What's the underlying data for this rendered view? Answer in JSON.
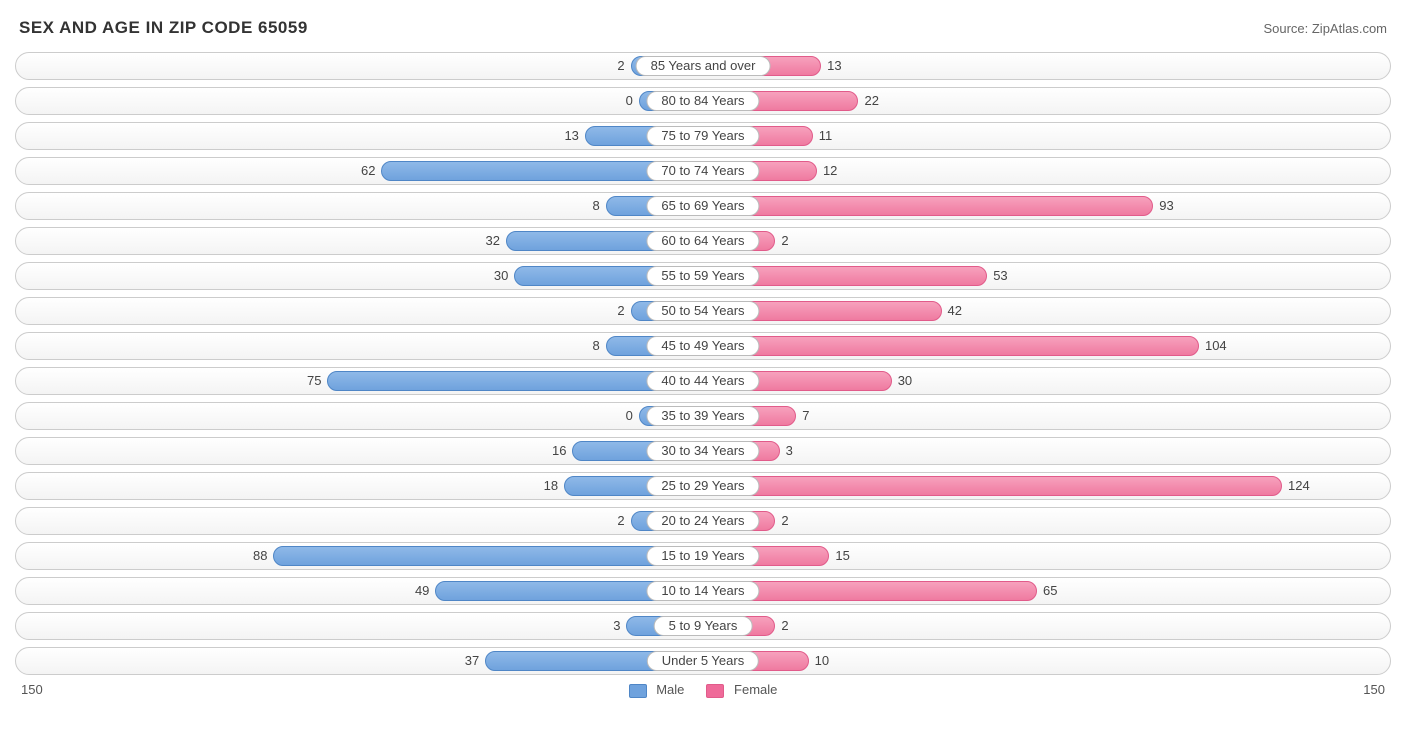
{
  "title": "SEX AND AGE IN ZIP CODE 65059",
  "source": "Source: ZipAtlas.com",
  "axis": {
    "max": 150,
    "left_label": "150",
    "right_label": "150"
  },
  "pill_width_units": 17,
  "bar_min_units": 14,
  "colors": {
    "male_fill": "linear-gradient(to bottom, #8fb9e8 0%, #6fa2dd 100%)",
    "male_border": "#4f86c6",
    "female_fill": "linear-gradient(to bottom, #f7a1bd 0%, #ef7aa0 100%)",
    "female_border": "#e15b8a",
    "male_swatch": "#6fa2dd",
    "female_swatch": "#ef6a99",
    "title_color": "#333333",
    "source_color": "#666666",
    "text_color": "#444444",
    "row_border": "#cccccc",
    "pill_border": "#bbbbbb",
    "background": "#ffffff"
  },
  "legend": {
    "male": "Male",
    "female": "Female"
  },
  "rows": [
    {
      "label": "85 Years and over",
      "male": 2,
      "female": 13
    },
    {
      "label": "80 to 84 Years",
      "male": 0,
      "female": 22
    },
    {
      "label": "75 to 79 Years",
      "male": 13,
      "female": 11
    },
    {
      "label": "70 to 74 Years",
      "male": 62,
      "female": 12
    },
    {
      "label": "65 to 69 Years",
      "male": 8,
      "female": 93
    },
    {
      "label": "60 to 64 Years",
      "male": 32,
      "female": 2
    },
    {
      "label": "55 to 59 Years",
      "male": 30,
      "female": 53
    },
    {
      "label": "50 to 54 Years",
      "male": 2,
      "female": 42
    },
    {
      "label": "45 to 49 Years",
      "male": 8,
      "female": 104
    },
    {
      "label": "40 to 44 Years",
      "male": 75,
      "female": 30
    },
    {
      "label": "35 to 39 Years",
      "male": 0,
      "female": 7
    },
    {
      "label": "30 to 34 Years",
      "male": 16,
      "female": 3
    },
    {
      "label": "25 to 29 Years",
      "male": 18,
      "female": 124
    },
    {
      "label": "20 to 24 Years",
      "male": 2,
      "female": 2
    },
    {
      "label": "15 to 19 Years",
      "male": 88,
      "female": 15
    },
    {
      "label": "10 to 14 Years",
      "male": 49,
      "female": 65
    },
    {
      "label": "5 to 9 Years",
      "male": 3,
      "female": 2
    },
    {
      "label": "Under 5 Years",
      "male": 37,
      "female": 10
    }
  ]
}
